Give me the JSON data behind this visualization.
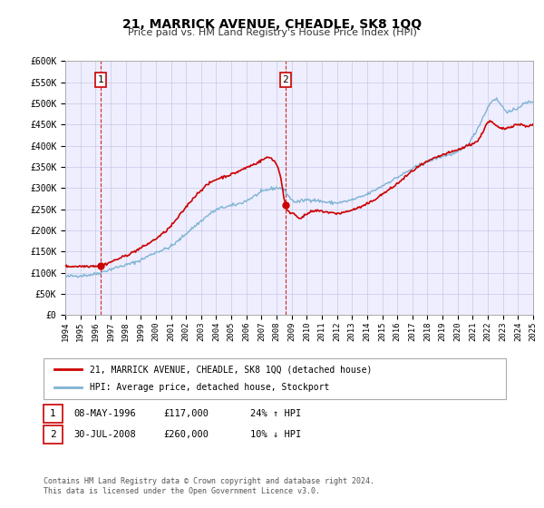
{
  "title": "21, MARRICK AVENUE, CHEADLE, SK8 1QQ",
  "subtitle": "Price paid vs. HM Land Registry's House Price Index (HPI)",
  "xlim": [
    1994,
    2025
  ],
  "ylim": [
    0,
    600000
  ],
  "yticks": [
    0,
    50000,
    100000,
    150000,
    200000,
    250000,
    300000,
    350000,
    400000,
    450000,
    500000,
    550000,
    600000
  ],
  "ytick_labels": [
    "£0",
    "£50K",
    "£100K",
    "£150K",
    "£200K",
    "£250K",
    "£300K",
    "£350K",
    "£400K",
    "£450K",
    "£500K",
    "£550K",
    "£600K"
  ],
  "xticks": [
    1994,
    1995,
    1996,
    1997,
    1998,
    1999,
    2000,
    2001,
    2002,
    2003,
    2004,
    2005,
    2006,
    2007,
    2008,
    2009,
    2010,
    2011,
    2012,
    2013,
    2014,
    2015,
    2016,
    2017,
    2018,
    2019,
    2020,
    2021,
    2022,
    2023,
    2024,
    2025
  ],
  "red_line_color": "#cc0000",
  "blue_line_color": "#7fb3d3",
  "grid_color": "#c8c8e8",
  "plot_bg_color": "#eeeeff",
  "marker1_x": 1996.35,
  "marker1_y": 117000,
  "marker2_x": 2008.58,
  "marker2_y": 260000,
  "vline1_x": 1996.35,
  "vline2_x": 2008.58,
  "legend_label_red": "21, MARRICK AVENUE, CHEADLE, SK8 1QQ (detached house)",
  "legend_label_blue": "HPI: Average price, detached house, Stockport",
  "table_row1": [
    "1",
    "08-MAY-1996",
    "£117,000",
    "24% ↑ HPI"
  ],
  "table_row2": [
    "2",
    "30-JUL-2008",
    "£260,000",
    "10% ↓ HPI"
  ],
  "footer_text": "Contains HM Land Registry data © Crown copyright and database right 2024.\nThis data is licensed under the Open Government Licence v3.0."
}
